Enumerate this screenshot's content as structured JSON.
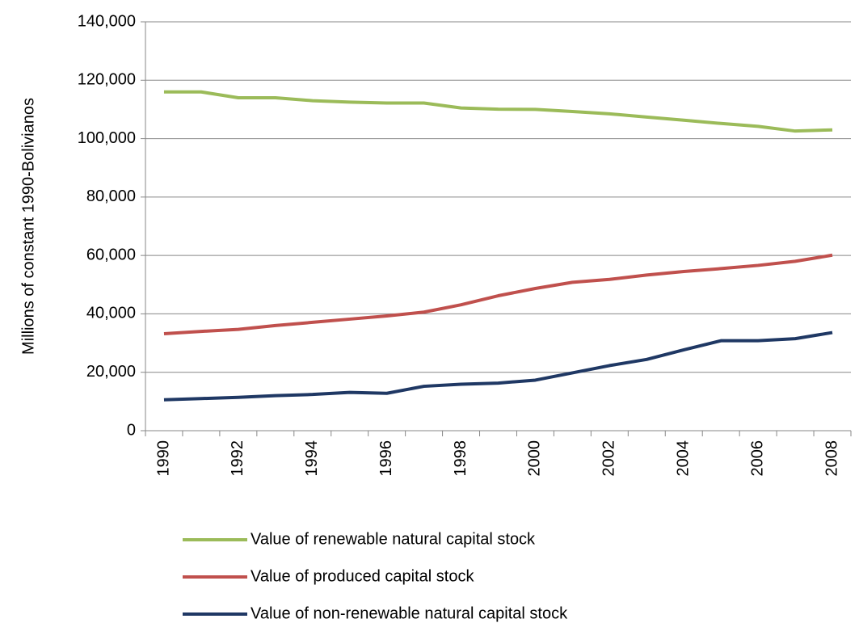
{
  "chart_data": {
    "type": "line",
    "y_label": "Millions of constant 1990-Bolivianos",
    "categories": [
      "1990",
      null,
      "1992",
      null,
      "1994",
      null,
      "1996",
      null,
      "1998",
      null,
      "2000",
      null,
      "2002",
      null,
      "2004",
      null,
      "2006",
      null,
      "2008"
    ],
    "series": [
      {
        "name": "Value of renewable natural capital stock",
        "color": "#9bbb59",
        "values": [
          116000,
          116000,
          114000,
          114000,
          113000,
          112500,
          112200,
          112200,
          110500,
          110100,
          110000,
          109300,
          108500,
          107400,
          106300,
          105200,
          104200,
          102600,
          103000
        ]
      },
      {
        "name": "Value of produced capital stock",
        "color": "#c0504d",
        "values": [
          33200,
          34000,
          34700,
          36000,
          37100,
          38200,
          39300,
          40600,
          43100,
          46200,
          48700,
          50800,
          51800,
          53300,
          54500,
          55500,
          56600,
          58000,
          60100
        ]
      },
      {
        "name": "Value of non-renewable natural capital stock",
        "color": "#1f3864",
        "values": [
          10600,
          11000,
          11400,
          12000,
          12400,
          13100,
          12800,
          15200,
          15900,
          16300,
          17300,
          19800,
          22300,
          24400,
          27700,
          30800,
          30800,
          31500,
          33600
        ]
      }
    ],
    "ylim": [
      0,
      140000
    ],
    "yticks": [
      0,
      {
        "value": 20000,
        "label": "20,000"
      },
      {
        "value": 40000,
        "label": "40,000"
      },
      {
        "value": 60000,
        "label": "60,000"
      },
      {
        "value": 80000,
        "label": "80,000"
      },
      {
        "value": 100000,
        "label": "100,000"
      },
      {
        "value": 120000,
        "label": "120,000"
      },
      {
        "value": 140000,
        "label": "140,000"
      }
    ],
    "grid": true
  }
}
